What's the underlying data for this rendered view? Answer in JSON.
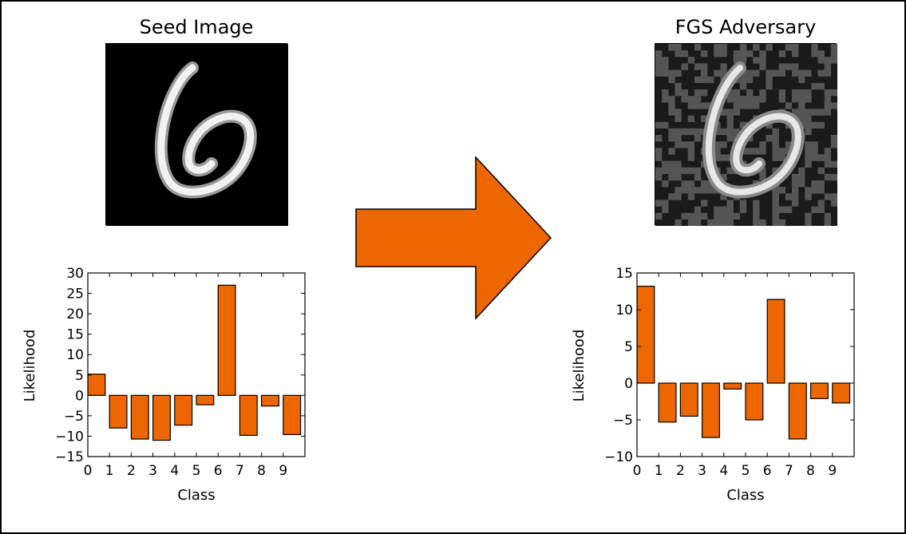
{
  "colors": {
    "bar_fill": "#ee6600",
    "arrow_fill": "#ee6600",
    "seed_background": "#000000",
    "adversary_background": "#1a1a1a",
    "noise_gray": "#555555",
    "stroke_white": "#f2f2f2"
  },
  "seed_panel": {
    "title": "Seed Image",
    "image_description": "handwritten digit"
  },
  "adversary_panel": {
    "title": "FGS Adversary",
    "image_description": "handwritten digit with noise"
  },
  "arrow": {
    "icon": "right-arrow-icon"
  },
  "chart_data": [
    {
      "type": "bar",
      "title": "",
      "xlabel": "Class",
      "ylabel": "Likelihood",
      "categories": [
        "0",
        "1",
        "2",
        "3",
        "4",
        "5",
        "6",
        "7",
        "8",
        "9"
      ],
      "values": [
        5.2,
        -8.0,
        -10.7,
        -11.0,
        -7.3,
        -2.3,
        27.0,
        -9.8,
        -2.6,
        -9.6
      ],
      "ylim": [
        -15,
        30
      ],
      "yticks": [
        -15,
        -10,
        -5,
        0,
        5,
        10,
        15,
        20,
        25,
        30
      ],
      "ytick_labels": [
        "−15",
        "−10",
        "−5",
        "0",
        "5",
        "10",
        "15",
        "20",
        "25",
        "30"
      ],
      "xlim": [
        0,
        10
      ],
      "xticks": [
        0,
        1,
        2,
        3,
        4,
        5,
        6,
        7,
        8,
        9
      ],
      "xtick_labels": [
        "0",
        "1",
        "2",
        "3",
        "4",
        "5",
        "6",
        "7",
        "8",
        "9"
      ],
      "grid": false
    },
    {
      "type": "bar",
      "title": "",
      "xlabel": "Class",
      "ylabel": "Likelihood",
      "categories": [
        "0",
        "1",
        "2",
        "3",
        "4",
        "5",
        "6",
        "7",
        "8",
        "9"
      ],
      "values": [
        13.2,
        -5.3,
        -4.5,
        -7.4,
        -0.8,
        -5.0,
        11.4,
        -7.6,
        -2.1,
        -2.7
      ],
      "ylim": [
        -10,
        15
      ],
      "yticks": [
        -10,
        -5,
        0,
        5,
        10,
        15
      ],
      "ytick_labels": [
        "−10",
        "−5",
        "0",
        "5",
        "10",
        "15"
      ],
      "xlim": [
        0,
        10
      ],
      "xticks": [
        0,
        1,
        2,
        3,
        4,
        5,
        6,
        7,
        8,
        9
      ],
      "xtick_labels": [
        "0",
        "1",
        "2",
        "3",
        "4",
        "5",
        "6",
        "7",
        "8",
        "9"
      ],
      "grid": false
    }
  ]
}
